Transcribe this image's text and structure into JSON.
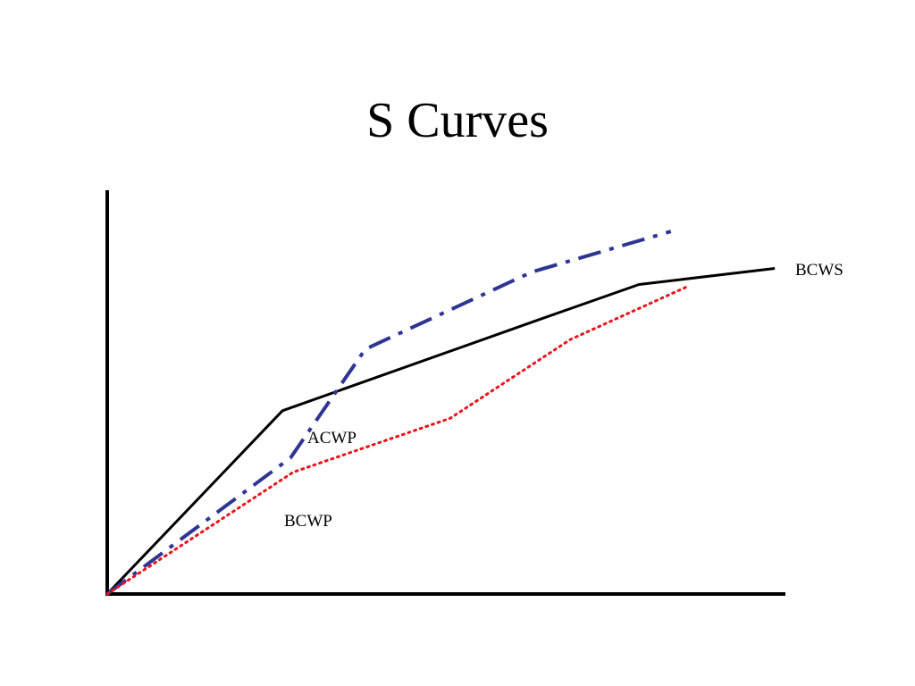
{
  "slide": {
    "title": "S Curves"
  },
  "chart_data": {
    "type": "line",
    "title": "S Curves",
    "xlabel": "",
    "ylabel": "",
    "xlim": [
      0,
      100
    ],
    "ylim": [
      0,
      100
    ],
    "grid": false,
    "legend": "none",
    "series": [
      {
        "name": "BCWS",
        "color": "#000000",
        "style": "solid",
        "x": [
          0,
          25.8,
          63.5,
          78.3,
          98.3
        ],
        "y": [
          0,
          45.6,
          68.2,
          77.0,
          81.0
        ]
      },
      {
        "name": "ACWP",
        "color": "#2f3592",
        "style": "dash-dot",
        "x": [
          0,
          27.0,
          38.0,
          62.5,
          83.0
        ],
        "y": [
          0,
          33.9,
          60.9,
          80.1,
          90.2
        ]
      },
      {
        "name": "BCWP",
        "color": "#e8141c",
        "style": "dotted",
        "x": [
          0,
          27.4,
          50.5,
          68.2,
          85.2
        ],
        "y": [
          0,
          30.3,
          43.7,
          63.3,
          76.3
        ]
      }
    ],
    "labels": [
      "BCWS",
      "ACWP",
      "BCWP"
    ]
  }
}
